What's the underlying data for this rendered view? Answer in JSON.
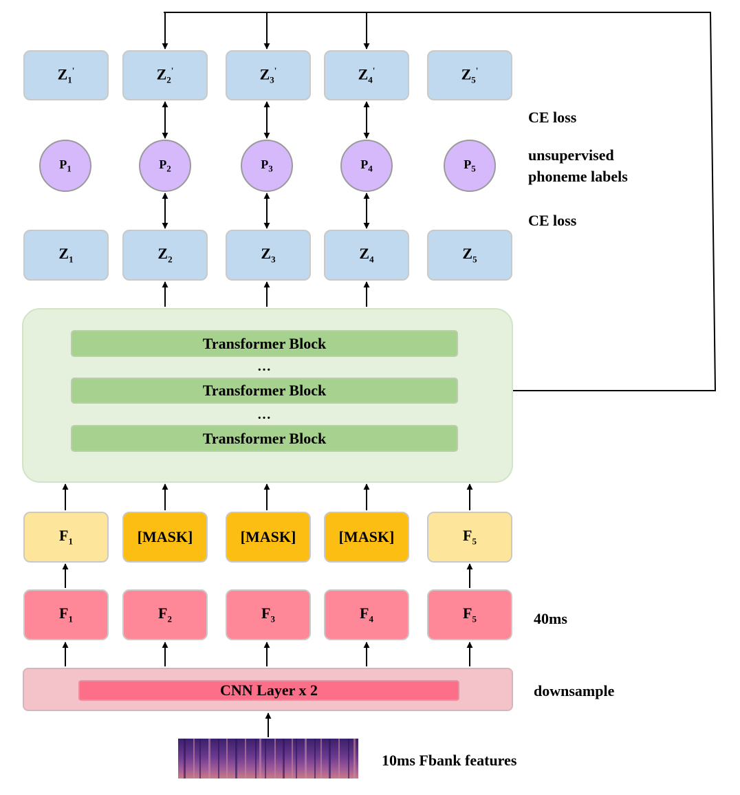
{
  "z_prime_row": [
    {
      "base": "Z",
      "sub": "1",
      "sup": "'"
    },
    {
      "base": "Z",
      "sub": "2",
      "sup": "'"
    },
    {
      "base": "Z",
      "sub": "3",
      "sup": "'"
    },
    {
      "base": "Z",
      "sub": "4",
      "sup": "'"
    },
    {
      "base": "Z",
      "sub": "5",
      "sup": "'"
    }
  ],
  "p_row": [
    {
      "base": "P",
      "sub": "1"
    },
    {
      "base": "P",
      "sub": "2"
    },
    {
      "base": "P",
      "sub": "3"
    },
    {
      "base": "P",
      "sub": "4"
    },
    {
      "base": "P",
      "sub": "5"
    }
  ],
  "z_row": [
    {
      "base": "Z",
      "sub": "1"
    },
    {
      "base": "Z",
      "sub": "2"
    },
    {
      "base": "Z",
      "sub": "3"
    },
    {
      "base": "Z",
      "sub": "4"
    },
    {
      "base": "Z",
      "sub": "5"
    }
  ],
  "transformer": {
    "block_label": "Transformer Block",
    "ellipsis": "…"
  },
  "masked_row": [
    {
      "type": "feature",
      "base": "F",
      "sub": "1"
    },
    {
      "type": "mask",
      "text": "[MASK]"
    },
    {
      "type": "mask",
      "text": "[MASK]"
    },
    {
      "type": "mask",
      "text": "[MASK]"
    },
    {
      "type": "feature",
      "base": "F",
      "sub": "5"
    }
  ],
  "feature_row": [
    {
      "base": "F",
      "sub": "1"
    },
    {
      "base": "F",
      "sub": "2"
    },
    {
      "base": "F",
      "sub": "3"
    },
    {
      "base": "F",
      "sub": "4"
    },
    {
      "base": "F",
      "sub": "5"
    }
  ],
  "cnn": {
    "label": "CNN Layer x 2"
  },
  "side_labels": {
    "ce_loss_top": "CE loss",
    "phoneme_line1": "unsupervised",
    "phoneme_line2": "phoneme labels",
    "ce_loss_bottom": "CE loss",
    "frame_rate": "40ms",
    "downsample": "downsample",
    "input": "10ms Fbank features"
  },
  "colors": {
    "z_box": "#c0d9ee",
    "p_circle": "#d6b9fb",
    "feature_light": "#fde69c",
    "mask": "#fcbe12",
    "feature_red": "#fe8798",
    "transformer_panel": "#e5f0dd",
    "transformer_block": "#a6d18f",
    "cnn_outer": "#f3c3c9",
    "cnn_inner": "#fd6e88"
  }
}
